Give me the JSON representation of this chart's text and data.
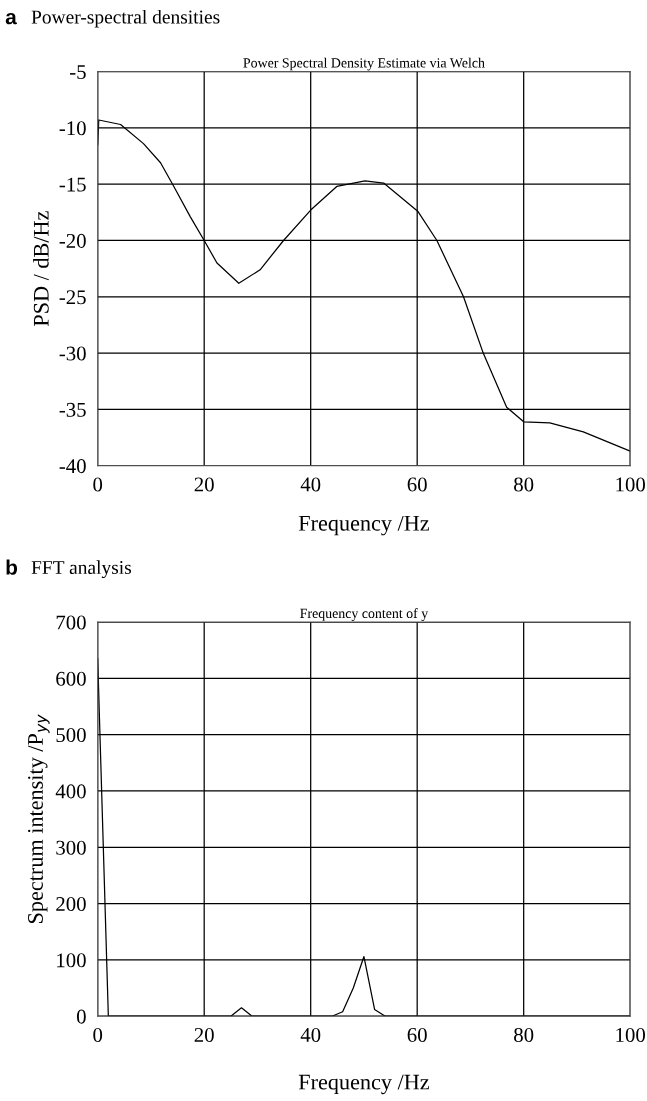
{
  "chart_data": [
    {
      "type": "line",
      "title": "Power-spectral densities",
      "subtitle": "Power Spectral Density Estimate via Welch",
      "annotations": [
        "a"
      ],
      "xlabel": "Frequency /Hz",
      "ylabel": "PSD / dB/Hz",
      "series": [
        {
          "color": "#000000",
          "x": [
            0,
            0.2,
            4.3,
            8.6,
            11.8,
            14.3,
            17.4,
            20,
            22.4,
            26.5,
            30.5,
            34.9,
            40,
            44.9,
            50.2,
            53.7,
            60.1,
            63.7,
            68.7,
            72.4,
            76.8,
            80,
            84.9,
            91.2,
            100
          ],
          "values": [
            -11.5,
            -9.3,
            -9.7,
            -11.4,
            -13.1,
            -15.2,
            -17.9,
            -20,
            -22.0,
            -23.8,
            -22.6,
            -20,
            -17.3,
            -15.2,
            -14.7,
            -14.9,
            -17.4,
            -20,
            -25,
            -30,
            -34.8,
            -36.1,
            -36.2,
            -37.0,
            -38.7
          ]
        }
      ],
      "xlim": [
        0,
        100
      ],
      "xticks": [
        0,
        20,
        40,
        60,
        80,
        100
      ],
      "ylim": [
        -40,
        -5
      ],
      "yticks": [
        -40,
        -35,
        -30,
        -25,
        -20,
        -15,
        -10,
        -5
      ],
      "grid": true
    },
    {
      "type": "line",
      "title": "FFT analysis",
      "subtitle": "Frequency content of y",
      "annotations": [
        "b"
      ],
      "xlabel": "Frequency /Hz",
      "ylabel": "Spectrum intensity /P$_{yy}$",
      "series": [
        {
          "color": "#000000",
          "x": [
            0,
            2,
            4,
            10,
            20,
            24,
            25,
            27,
            29,
            31,
            40,
            44,
            46,
            48,
            50,
            52,
            54,
            56,
            60,
            80,
            100
          ],
          "values": [
            635,
            0,
            0,
            0,
            0,
            0,
            0,
            15,
            0,
            0,
            0,
            0,
            8,
            50,
            106,
            12,
            0,
            0,
            0,
            0,
            0
          ]
        }
      ],
      "xlim": [
        0,
        100
      ],
      "xticks": [
        0,
        20,
        40,
        60,
        80,
        100
      ],
      "ylim": [
        0,
        700
      ],
      "yticks": [
        0,
        100,
        200,
        300,
        400,
        500,
        600,
        700
      ],
      "grid": true
    }
  ]
}
